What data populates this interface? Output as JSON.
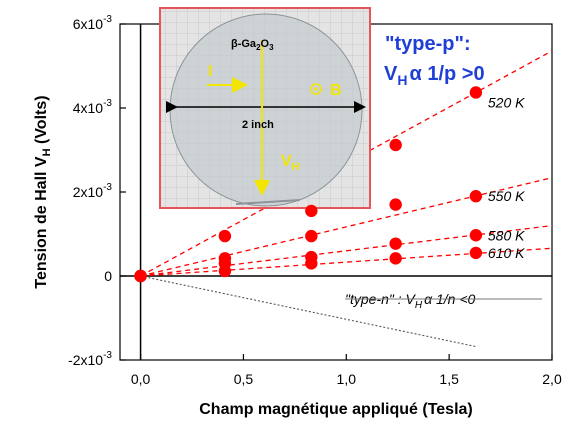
{
  "chart_data": {
    "type": "scatter",
    "title": "",
    "xlabel": "Champ magnétique appliqué (Tesla)",
    "ylabel_main": "Tension de Hall V",
    "ylabel_sub": "H",
    "ylabel_unit": " (Volts)",
    "xlim": [
      -0.1,
      2.0
    ],
    "ylim": [
      -0.002,
      0.006
    ],
    "x_ticks": [
      {
        "value": 0.0,
        "label": "0,0"
      },
      {
        "value": 0.5,
        "label": "0,5"
      },
      {
        "value": 1.0,
        "label": "1,0"
      },
      {
        "value": 1.5,
        "label": "1,5"
      },
      {
        "value": 2.0,
        "label": "2,0"
      }
    ],
    "y_ticks": [
      {
        "value": -0.002,
        "mantissa": "-2x10",
        "exp": "-3"
      },
      {
        "value": 0.0,
        "mantissa": "0",
        "exp": ""
      },
      {
        "value": 0.002,
        "mantissa": "2x10",
        "exp": "-3"
      },
      {
        "value": 0.004,
        "mantissa": "4x10",
        "exp": "-3"
      },
      {
        "value": 0.006,
        "mantissa": "6x10",
        "exp": "-3"
      }
    ],
    "series": [
      {
        "name": "520 K",
        "color": "#ff0000",
        "fit_slope": 0.00268,
        "x": [
          0.0,
          0.41,
          0.83,
          1.24,
          1.63
        ],
        "y": [
          0.0,
          0.00095,
          0.00155,
          0.00312,
          0.00437
        ]
      },
      {
        "name": "550 K",
        "color": "#ff0000",
        "fit_slope": 0.00117,
        "x": [
          0.0,
          0.41,
          0.83,
          1.24,
          1.63
        ],
        "y": [
          0.0,
          0.00042,
          0.00095,
          0.0017,
          0.0019
        ]
      },
      {
        "name": "580 K",
        "color": "#ff0000",
        "fit_slope": 0.0006,
        "x": [
          0.0,
          0.41,
          0.83,
          1.24,
          1.63
        ],
        "y": [
          0.0,
          0.0003,
          0.00045,
          0.00077,
          0.00097
        ]
      },
      {
        "name": "610 K",
        "color": "#ff0000",
        "fit_slope": 0.00033,
        "x": [
          0.0,
          0.41,
          0.83,
          1.24,
          1.63
        ],
        "y": [
          0.0,
          0.00012,
          0.0003,
          0.00042,
          0.00055
        ]
      }
    ],
    "type_n_line": {
      "x": [
        0.0,
        1.63
      ],
      "y": [
        0.0,
        -0.00168
      ],
      "color": "#555555"
    },
    "grid": false,
    "legend": "none"
  },
  "annotations": {
    "type_p_line1": "\"type-p\":",
    "type_p_line2_main": "V",
    "type_p_line2_sub": "H",
    "type_p_line2_rest": "α 1/p >0",
    "type_n_prefix": "\"type-n\" : V",
    "type_n_sub": "H",
    "type_n_rest": "α 1/n <0"
  },
  "inset": {
    "material_prefix": "β-Ga",
    "material_sub1": "2",
    "material_mid": "O",
    "material_sub2": "3",
    "current_label": "I",
    "field_label": "B",
    "voltage_main": "V",
    "voltage_sub": "H",
    "size_label": "2 inch",
    "border_color": "#e8545a"
  }
}
